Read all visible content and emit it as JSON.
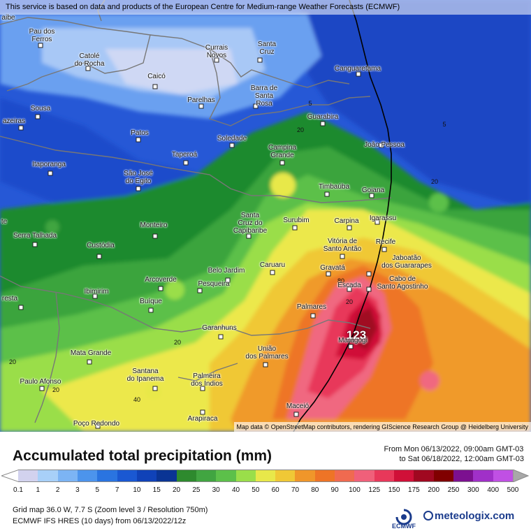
{
  "attribution_top": "This service is based on data and products of the European Centre for Medium-range Weather Forecasts (ECMWF)",
  "attribution_bottom": "Map data © OpenStreetMap contributors, rendering GIScience Research Group @ Heidelberg University",
  "title": "Accumulated total precipitation (mm)",
  "period": {
    "line1": "From Mon 06/13/2022, 09:00am GMT-03",
    "line2": "to Sat 06/18/2022, 12:00am GMT-03"
  },
  "legend": {
    "ticks": [
      "0.1",
      "1",
      "2",
      "3",
      "5",
      "7",
      "10",
      "15",
      "20",
      "25",
      "30",
      "40",
      "50",
      "60",
      "70",
      "80",
      "90",
      "100",
      "125",
      "150",
      "175",
      "200",
      "250",
      "300",
      "400",
      "500"
    ],
    "colors": [
      "#d2d2ee",
      "#a8d0f8",
      "#7cb4f4",
      "#4c94ec",
      "#2a74e0",
      "#1a58d2",
      "#1042b8",
      "#0a3494",
      "#2e8a2e",
      "#41a541",
      "#5cc04a",
      "#9ade4a",
      "#e8e84a",
      "#f0c836",
      "#f0962a",
      "#ee7426",
      "#f06a50",
      "#f0607a",
      "#e8385a",
      "#d01038",
      "#a00820",
      "#800000",
      "#7c1090",
      "#a030c8",
      "#c050e4",
      "#d878ec",
      "#e8a0f0",
      "#f4ccf4",
      "#d8d8d8",
      "#a8a8a8"
    ]
  },
  "info_line1": "Grid map 36.0 W, 7.7 S (Zoom level 3 / Resolution 750m)",
  "info_line2": "ECMWF IFS HRES (10 days) from 06/13/2022/12z",
  "brand": {
    "ecmwf": "ECMWF",
    "meteologix": "meteologix.com"
  },
  "max_value": "123",
  "contour_labels": [
    "5",
    "5",
    "20",
    "20",
    "20",
    "20",
    "80",
    "20",
    "40",
    "20"
  ],
  "cities": [
    {
      "name": "Pau dos\nFerros"
    },
    {
      "name": "Catolé\ndo Rocha"
    },
    {
      "name": "Currais\nNovos"
    },
    {
      "name": "Santa\nCruz"
    },
    {
      "name": "Canguaretama"
    },
    {
      "name": "Caicó"
    },
    {
      "name": "Barra de\nSanta\nRosa"
    },
    {
      "name": "Parelhas"
    },
    {
      "name": "Sousa"
    },
    {
      "name": "azeiras"
    },
    {
      "name": "Guarabira"
    },
    {
      "name": "Patos"
    },
    {
      "name": "Soledade"
    },
    {
      "name": "João Pessoa"
    },
    {
      "name": "Campina\nGrande"
    },
    {
      "name": "Taperoá"
    },
    {
      "name": "Itaporanga"
    },
    {
      "name": "São José\ndo Egito"
    },
    {
      "name": "Timbaúba"
    },
    {
      "name": "Goiana"
    },
    {
      "name": "Igarassu"
    },
    {
      "name": "Monteiro"
    },
    {
      "name": "Santa\nCruz do\nCapibaribe"
    },
    {
      "name": "Surubim"
    },
    {
      "name": "Carpina"
    },
    {
      "name": "Serra Talhada"
    },
    {
      "name": "te"
    },
    {
      "name": "Custódia"
    },
    {
      "name": "Vitória de\nSanto Antão"
    },
    {
      "name": "Recife"
    },
    {
      "name": "Belo Jardim"
    },
    {
      "name": "Caruaru"
    },
    {
      "name": "Jaboatão\ndos Guararapes"
    },
    {
      "name": "Arcoverde"
    },
    {
      "name": "Pesqueira"
    },
    {
      "name": "Gravatá"
    },
    {
      "name": "Escada"
    },
    {
      "name": "Cabo de\nSanto Agostinho"
    },
    {
      "name": "Ibimirim"
    },
    {
      "name": "resta"
    },
    {
      "name": "Buíque"
    },
    {
      "name": "Palmares"
    },
    {
      "name": "Garanhuns"
    },
    {
      "name": "Maragogi"
    },
    {
      "name": "Mata Grande"
    },
    {
      "name": "União\ndos Palmares"
    },
    {
      "name": "Santana\ndo Ipanema"
    },
    {
      "name": "Palmeira\ndos Índios"
    },
    {
      "name": "Paulo Afonso"
    },
    {
      "name": "Maceió"
    },
    {
      "name": "Arapiraca"
    },
    {
      "name": "Poço Redondo"
    },
    {
      "name": "aibe"
    }
  ]
}
